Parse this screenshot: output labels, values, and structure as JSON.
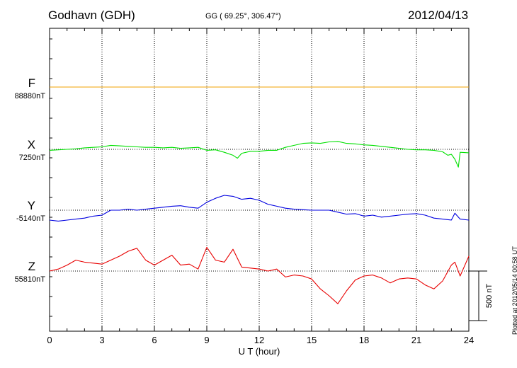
{
  "header": {
    "station": "Godhavn (GDH)",
    "coords": "GG ( 69.25°, 306.47°)",
    "date": "2012/04/13"
  },
  "side_note": "Plotted at 2012/05/14 00:58 UT",
  "chart_data": {
    "type": "line",
    "xlabel": "U T (hour)",
    "xlim": [
      0,
      24
    ],
    "xticks": [
      "0",
      "3",
      "6",
      "9",
      "12",
      "15",
      "18",
      "21",
      "24"
    ],
    "grid": true,
    "scale_bar": {
      "value": 500,
      "label": "500 nT"
    },
    "series": [
      {
        "name": "F",
        "baseline": "88880nT",
        "color": "#f0a000",
        "t": [
          0,
          24
        ],
        "v": [
          0,
          0
        ]
      },
      {
        "name": "X",
        "baseline": "7250nT",
        "color": "#00e000",
        "t": [
          0,
          0.5,
          1,
          1.5,
          2,
          2.5,
          3,
          3.5,
          4,
          4.5,
          5,
          5.5,
          6,
          6.5,
          7,
          7.5,
          8,
          8.5,
          9,
          9.5,
          10,
          10.5,
          10.75,
          11,
          11.5,
          12,
          12.5,
          13,
          13.5,
          14,
          14.5,
          15,
          15.5,
          16,
          16.5,
          17,
          17.5,
          18,
          18.5,
          19,
          19.5,
          20,
          20.5,
          21,
          21.5,
          22,
          22.5,
          22.8,
          23,
          23.2,
          23.4,
          23.5,
          24
        ],
        "v": [
          -10,
          -5,
          0,
          5,
          15,
          20,
          25,
          40,
          35,
          30,
          25,
          20,
          20,
          15,
          20,
          10,
          15,
          20,
          -10,
          -5,
          -30,
          -60,
          -90,
          -40,
          -20,
          -20,
          -10,
          -10,
          20,
          40,
          60,
          65,
          60,
          75,
          80,
          60,
          55,
          45,
          40,
          30,
          20,
          10,
          0,
          -5,
          -5,
          -10,
          -25,
          -60,
          -50,
          -100,
          -180,
          -30,
          -35
        ]
      },
      {
        "name": "Y",
        "baseline": "-5140nT",
        "color": "#0000e0",
        "t": [
          0,
          0.5,
          1,
          1.5,
          2,
          2.5,
          3,
          3.5,
          4,
          4.5,
          5,
          5.5,
          6,
          6.5,
          7,
          7.5,
          8,
          8.5,
          9,
          9.5,
          10,
          10.5,
          11,
          11.5,
          12,
          12.5,
          13,
          13.5,
          14,
          14.5,
          15,
          15.5,
          16,
          16.5,
          17,
          17.5,
          18,
          18.5,
          19,
          19.5,
          20,
          20.5,
          21,
          21.5,
          22,
          22.5,
          23,
          23.2,
          23.5,
          24
        ],
        "v": [
          -100,
          -110,
          -100,
          -90,
          -80,
          -60,
          -50,
          0,
          0,
          10,
          0,
          10,
          20,
          30,
          40,
          45,
          30,
          20,
          80,
          120,
          150,
          140,
          110,
          120,
          100,
          60,
          40,
          20,
          10,
          5,
          0,
          0,
          0,
          -20,
          -40,
          -35,
          -60,
          -50,
          -70,
          -60,
          -50,
          -40,
          -35,
          -50,
          -80,
          -90,
          -100,
          -30,
          -90,
          -100
        ]
      },
      {
        "name": "Z",
        "baseline": "55810nT",
        "color": "#e80000",
        "t": [
          0,
          0.5,
          1,
          1.5,
          2,
          2.5,
          3,
          3.5,
          4,
          4.5,
          5,
          5.5,
          6,
          6.5,
          7,
          7.5,
          8,
          8.5,
          9,
          9.5,
          10,
          10.5,
          11,
          11.5,
          12,
          12.5,
          13,
          13.5,
          14,
          14.5,
          15,
          15.5,
          16,
          16.5,
          17,
          17.5,
          18,
          18.5,
          19,
          19.5,
          20,
          20.5,
          21,
          21.5,
          22,
          22.5,
          23,
          23.2,
          23.5,
          24
        ],
        "v": [
          0,
          20,
          60,
          110,
          90,
          80,
          70,
          110,
          150,
          200,
          230,
          110,
          60,
          110,
          160,
          60,
          70,
          20,
          240,
          110,
          90,
          220,
          40,
          30,
          20,
          0,
          20,
          -60,
          -40,
          -50,
          -80,
          -180,
          -250,
          -330,
          -200,
          -90,
          -50,
          -40,
          -70,
          -120,
          -80,
          -70,
          -80,
          -140,
          -180,
          -100,
          60,
          90,
          -50,
          150
        ]
      }
    ]
  }
}
